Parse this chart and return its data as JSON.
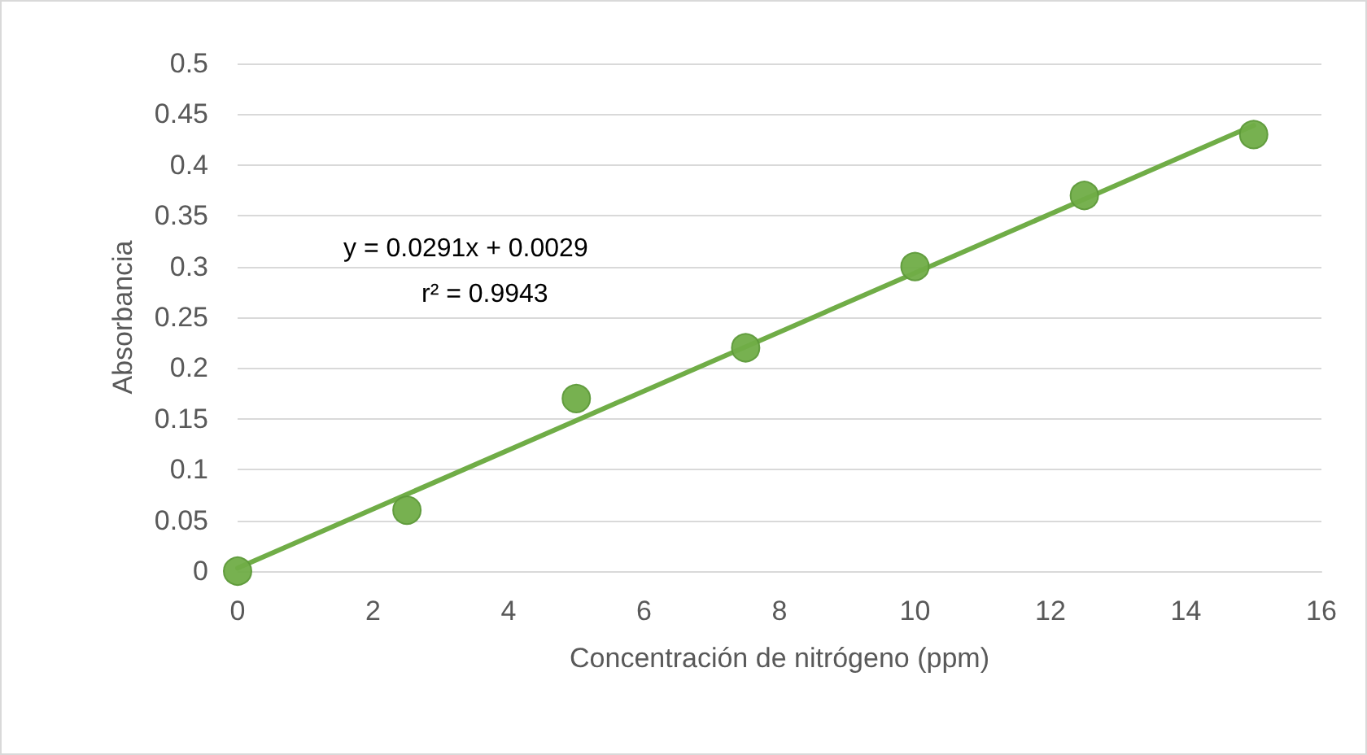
{
  "chart_data": {
    "type": "scatter",
    "xlabel": "Concentración de nitrógeno (ppm)",
    "ylabel": "Absorbancia",
    "xlim": [
      0,
      16
    ],
    "xticks": [
      0,
      2,
      4,
      6,
      8,
      10,
      12,
      14,
      16
    ],
    "ylim": [
      0,
      0.5
    ],
    "yticks": [
      0,
      0.05,
      0.1,
      0.15,
      0.2,
      0.25,
      0.3,
      0.35,
      0.4,
      0.45,
      0.5
    ],
    "grid": "y",
    "annotations": [
      "y = 0.0291x + 0.0029",
      "r² = 0.9943"
    ],
    "series": [
      {
        "color": "#70ad47",
        "marker": "circle",
        "x": [
          0,
          2.5,
          5,
          7.5,
          10,
          12.5,
          15
        ],
        "values": [
          0,
          0.06,
          0.17,
          0.22,
          0.3,
          0.37,
          0.43
        ]
      },
      {
        "type": "line",
        "color": "#70ad47",
        "marker": "none",
        "line_style": "solid",
        "x": [
          0,
          15
        ],
        "values": [
          0.003,
          0.439
        ]
      }
    ]
  }
}
